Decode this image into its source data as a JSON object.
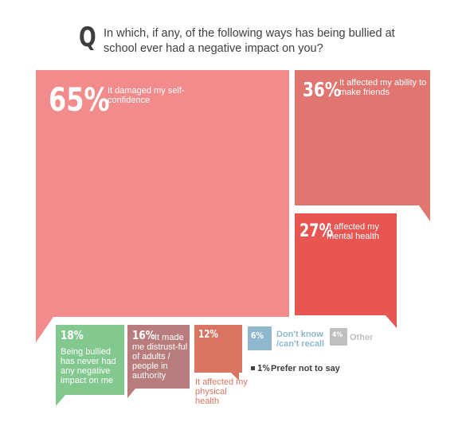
{
  "question": {
    "mark": "Q",
    "text": "In which, if any, of the following ways has being bullied at school ever had a negative impact on you?"
  },
  "chart_data": {
    "type": "bubble-treemap",
    "unit": "%",
    "items": [
      {
        "label": "It damaged my self-confidence",
        "value": 65,
        "display": "65%",
        "color": "#f28c8c"
      },
      {
        "label": "It affected my ability to make friends",
        "value": 36,
        "display": "36%",
        "color": "#e17570"
      },
      {
        "label": "It affected my mental health",
        "value": 27,
        "display": "27%",
        "color": "#e85652"
      },
      {
        "label": "Being bullied has never had any negative impact on me",
        "value": 18,
        "display": "18%",
        "color": "#83c98f"
      },
      {
        "label": "It made me distrust-ful of adults / people in authority",
        "value": 16,
        "display": "16%",
        "color": "#b97c7c"
      },
      {
        "label": "It affected my physical health",
        "value": 12,
        "display": "12%",
        "color": "#d97462"
      },
      {
        "label": "Don't know /can't recall",
        "value": 6,
        "display": "6%",
        "color": "#8fb8cf"
      },
      {
        "label": "Other",
        "value": 4,
        "display": "4%",
        "color": "#bfbfbf"
      },
      {
        "label": "Prefer not to say",
        "value": 1,
        "display": "1%",
        "color": "#3f3f3f"
      }
    ]
  }
}
